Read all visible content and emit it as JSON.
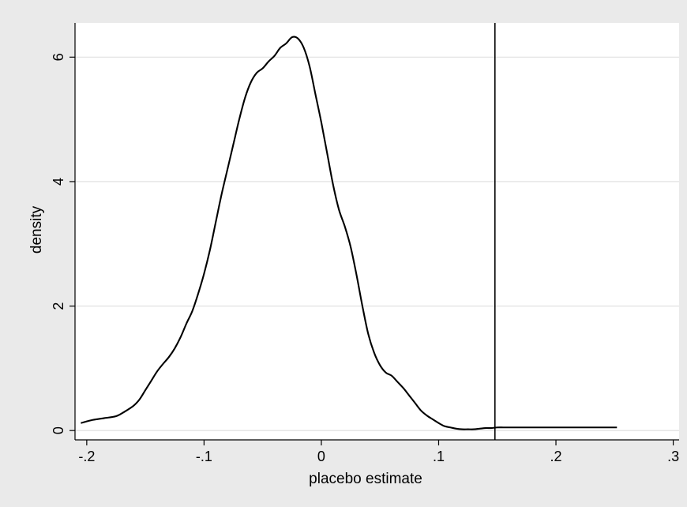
{
  "chart_data": {
    "type": "line",
    "title": "",
    "xlabel": "placebo estimate",
    "ylabel": "density",
    "xlim": [
      -0.21,
      0.305
    ],
    "ylim": [
      -0.15,
      6.55
    ],
    "x_ticks": [
      -0.2,
      -0.1,
      0,
      0.1,
      0.2,
      0.3
    ],
    "x_tick_labels": [
      "-.2",
      "-.1",
      "0",
      ".1",
      ".2",
      ".3"
    ],
    "y_ticks": [
      0,
      2,
      4,
      6
    ],
    "y_tick_labels": [
      "0",
      "2",
      "4",
      "6"
    ],
    "grid": "horizontal",
    "legend": "none",
    "reference_line": {
      "axis": "x",
      "value": 0.148
    },
    "colors": {
      "outer_background": "#eaeaea",
      "plot_background": "#ffffff",
      "line": "#000000",
      "grid": "#e3e3e3"
    },
    "series": [
      {
        "x": [
          -0.205,
          -0.195,
          -0.185,
          -0.175,
          -0.168,
          -0.16,
          -0.155,
          -0.15,
          -0.145,
          -0.14,
          -0.135,
          -0.13,
          -0.125,
          -0.12,
          -0.115,
          -0.11,
          -0.105,
          -0.1,
          -0.095,
          -0.09,
          -0.085,
          -0.08,
          -0.075,
          -0.07,
          -0.065,
          -0.06,
          -0.055,
          -0.05,
          -0.045,
          -0.04,
          -0.035,
          -0.03,
          -0.025,
          -0.02,
          -0.015,
          -0.01,
          -0.005,
          0.0,
          0.005,
          0.01,
          0.015,
          0.02,
          0.025,
          0.03,
          0.035,
          0.04,
          0.045,
          0.05,
          0.055,
          0.06,
          0.065,
          0.07,
          0.075,
          0.08,
          0.085,
          0.09,
          0.095,
          0.1,
          0.105,
          0.11,
          0.115,
          0.12,
          0.125,
          0.13,
          0.135,
          0.14,
          0.145,
          0.15,
          0.155,
          0.16,
          0.165,
          0.17,
          0.175,
          0.18,
          0.185,
          0.19,
          0.2,
          0.21,
          0.22,
          0.23,
          0.24,
          0.252
        ],
        "y": [
          0.12,
          0.17,
          0.2,
          0.23,
          0.3,
          0.4,
          0.5,
          0.65,
          0.8,
          0.95,
          1.07,
          1.18,
          1.32,
          1.5,
          1.72,
          1.92,
          2.2,
          2.52,
          2.9,
          3.35,
          3.8,
          4.2,
          4.6,
          5.0,
          5.35,
          5.6,
          5.75,
          5.82,
          5.93,
          6.02,
          6.15,
          6.22,
          6.32,
          6.3,
          6.15,
          5.85,
          5.4,
          4.95,
          4.45,
          3.95,
          3.55,
          3.28,
          2.95,
          2.5,
          2.0,
          1.55,
          1.25,
          1.05,
          0.93,
          0.88,
          0.78,
          0.68,
          0.56,
          0.44,
          0.32,
          0.24,
          0.18,
          0.12,
          0.07,
          0.05,
          0.03,
          0.02,
          0.02,
          0.02,
          0.03,
          0.04,
          0.04,
          0.05,
          0.05,
          0.05,
          0.05,
          0.05,
          0.05,
          0.05,
          0.05,
          0.05,
          0.05,
          0.05,
          0.05,
          0.05,
          0.05,
          0.05
        ]
      }
    ]
  }
}
